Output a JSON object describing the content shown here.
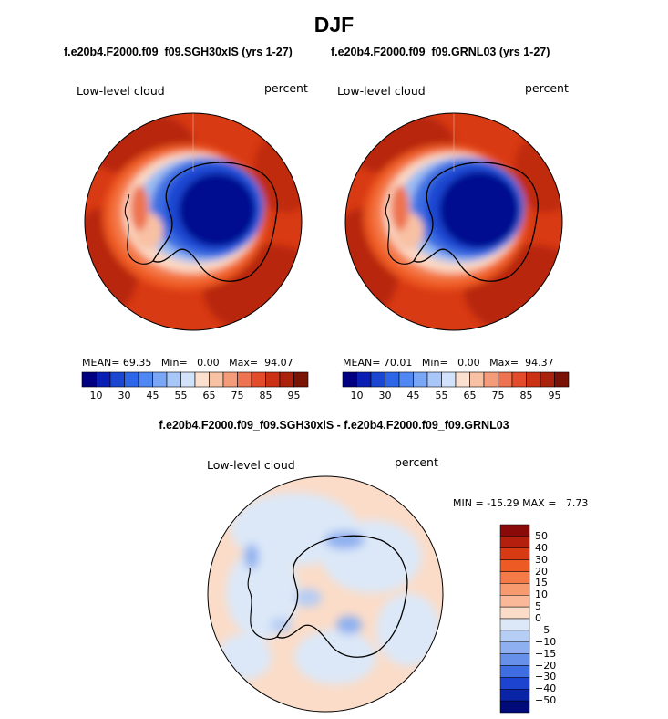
{
  "season": "DJF",
  "diff_title": "f.e20b4.F2000.f09_f09.SGH30xlS - f.e20b4.F2000.f09_f09.GRNL03",
  "panels": [
    {
      "case_title": "f.e20b4.F2000.f09_f09.SGH30xlS (yrs 1-27)",
      "variable": "Low-level cloud",
      "units": "percent",
      "stats": {
        "mean_label": "MEAN=",
        "mean": "69.35",
        "min_label": "Min=",
        "min": "0.00",
        "max_label": "Max=",
        "max": "94.07"
      }
    },
    {
      "case_title": "f.e20b4.F2000.f09_f09.GRNL03 (yrs 1-27)",
      "variable": "Low-level cloud",
      "units": "percent",
      "stats": {
        "mean_label": "MEAN=",
        "mean": "70.01",
        "min_label": "Min=",
        "min": "0.00",
        "max_label": "Max=",
        "max": "94.37"
      }
    }
  ],
  "diff_panel": {
    "variable": "Low-level cloud",
    "units": "percent",
    "min_label": "MIN =",
    "min": "-15.29",
    "max_label": "MAX =",
    "max": "7.73"
  },
  "colorbar_top": {
    "tick_labels": [
      "10",
      "30",
      "45",
      "55",
      "65",
      "75",
      "85",
      "95"
    ],
    "colors": [
      "#000080",
      "#0a1eb4",
      "#1a46d2",
      "#2e66e8",
      "#4f88f2",
      "#7aa6f6",
      "#a8c6f8",
      "#d2e2fa",
      "#fbe0cf",
      "#f8c1a4",
      "#f49b79",
      "#ee7350",
      "#e24c2b",
      "#cc3015",
      "#a8220c",
      "#7a1205"
    ]
  },
  "colorbar_diff": {
    "labels": [
      "50",
      "40",
      "30",
      "20",
      "15",
      "10",
      "5",
      "0",
      "−5",
      "−10",
      "−15",
      "−20",
      "−30",
      "−40",
      "−50"
    ],
    "colors": [
      "#8a0a0a",
      "#b5200e",
      "#d83a14",
      "#ee5a24",
      "#f47a48",
      "#f89a70",
      "#fbb898",
      "#fbdcc8",
      "#dce8f8",
      "#b6cdf4",
      "#8eb0f0",
      "#6690ea",
      "#3e6ee2",
      "#1c44d0",
      "#0a24a8",
      "#000a78"
    ]
  }
}
